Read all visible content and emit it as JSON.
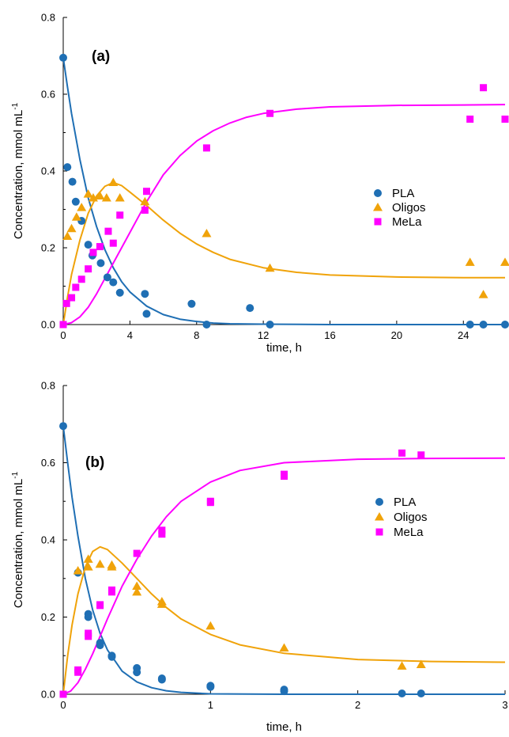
{
  "chart_data": [
    {
      "type": "scatter",
      "panel_label": "(a)",
      "xlabel": "time, h",
      "ylabel": "Concentration, mmol mL",
      "ylabel_superscript": "-1",
      "xlim": [
        0,
        26.5
      ],
      "ylim": [
        0,
        0.8
      ],
      "xticks": [
        "0",
        "4",
        "8",
        "12",
        "16",
        "20",
        "24"
      ],
      "yticks": [
        "0.0",
        "0.2",
        "0.4",
        "0.6",
        "0.8"
      ],
      "legend_position": "center-right",
      "series": [
        {
          "name": "PLA",
          "marker": "circle",
          "color": "#1f6fb4",
          "points": [
            [
              0,
              0.695
            ],
            [
              0.25,
              0.41
            ],
            [
              0.55,
              0.372
            ],
            [
              0.75,
              0.32
            ],
            [
              1.1,
              0.27
            ],
            [
              1.5,
              0.208
            ],
            [
              1.75,
              0.18
            ],
            [
              2.25,
              0.16
            ],
            [
              2.65,
              0.123
            ],
            [
              3.0,
              0.11
            ],
            [
              3.4,
              0.083
            ],
            [
              4.9,
              0.08
            ],
            [
              5.0,
              0.028
            ],
            [
              7.7,
              0.054
            ],
            [
              8.6,
              0.0
            ],
            [
              11.2,
              0.043
            ],
            [
              12.4,
              0.0
            ],
            [
              24.4,
              0.0
            ],
            [
              25.2,
              0.0
            ],
            [
              26.5,
              0.0
            ]
          ],
          "model": [
            [
              0,
              0.695
            ],
            [
              0.25,
              0.62
            ],
            [
              0.5,
              0.55
            ],
            [
              1,
              0.43
            ],
            [
              1.5,
              0.33
            ],
            [
              2,
              0.255
            ],
            [
              2.5,
              0.195
            ],
            [
              3,
              0.148
            ],
            [
              3.5,
              0.112
            ],
            [
              4,
              0.085
            ],
            [
              5,
              0.048
            ],
            [
              6,
              0.026
            ],
            [
              7,
              0.014
            ],
            [
              8,
              0.008
            ],
            [
              9,
              0.004
            ],
            [
              10,
              0.002
            ],
            [
              12,
              0.001
            ],
            [
              16,
              0.0
            ],
            [
              26.5,
              0.0
            ]
          ]
        },
        {
          "name": "Oligos",
          "marker": "triangle",
          "color": "#f0a30a",
          "points": [
            [
              0.25,
              0.23
            ],
            [
              0.5,
              0.25
            ],
            [
              0.8,
              0.28
            ],
            [
              1.1,
              0.305
            ],
            [
              1.5,
              0.34
            ],
            [
              1.8,
              0.33
            ],
            [
              2.2,
              0.335
            ],
            [
              2.6,
              0.33
            ],
            [
              3.0,
              0.37
            ],
            [
              3.4,
              0.33
            ],
            [
              4.9,
              0.32
            ],
            [
              8.6,
              0.237
            ],
            [
              12.4,
              0.147
            ],
            [
              24.4,
              0.162
            ],
            [
              25.2,
              0.078
            ],
            [
              26.5,
              0.162
            ]
          ],
          "model": [
            [
              0,
              0.0
            ],
            [
              0.25,
              0.07
            ],
            [
              0.5,
              0.13
            ],
            [
              1,
              0.22
            ],
            [
              1.5,
              0.29
            ],
            [
              2,
              0.335
            ],
            [
              2.5,
              0.36
            ],
            [
              3,
              0.37
            ],
            [
              3.5,
              0.362
            ],
            [
              4,
              0.345
            ],
            [
              5,
              0.31
            ],
            [
              6,
              0.272
            ],
            [
              7,
              0.238
            ],
            [
              8,
              0.21
            ],
            [
              9,
              0.188
            ],
            [
              10,
              0.17
            ],
            [
              12,
              0.148
            ],
            [
              14,
              0.136
            ],
            [
              16,
              0.129
            ],
            [
              20,
              0.124
            ],
            [
              24,
              0.122
            ],
            [
              26.5,
              0.122
            ]
          ]
        },
        {
          "name": "MeLa",
          "marker": "square",
          "color": "#ff00ff",
          "points": [
            [
              0,
              0.0
            ],
            [
              0.2,
              0.055
            ],
            [
              0.5,
              0.07
            ],
            [
              0.75,
              0.097
            ],
            [
              1.1,
              0.118
            ],
            [
              1.5,
              0.145
            ],
            [
              1.8,
              0.188
            ],
            [
              2.2,
              0.203
            ],
            [
              2.7,
              0.243
            ],
            [
              3.0,
              0.212
            ],
            [
              3.4,
              0.285
            ],
            [
              4.9,
              0.298
            ],
            [
              5.0,
              0.347
            ],
            [
              8.6,
              0.46
            ],
            [
              12.4,
              0.55
            ],
            [
              24.4,
              0.535
            ],
            [
              25.2,
              0.617
            ],
            [
              26.5,
              0.535
            ]
          ],
          "model": [
            [
              0,
              0.0
            ],
            [
              0.5,
              0.005
            ],
            [
              1,
              0.02
            ],
            [
              1.5,
              0.045
            ],
            [
              2,
              0.08
            ],
            [
              2.5,
              0.12
            ],
            [
              3,
              0.16
            ],
            [
              4,
              0.24
            ],
            [
              5,
              0.32
            ],
            [
              6,
              0.39
            ],
            [
              7,
              0.44
            ],
            [
              8,
              0.478
            ],
            [
              9,
              0.505
            ],
            [
              10,
              0.525
            ],
            [
              11,
              0.54
            ],
            [
              12,
              0.55
            ],
            [
              14,
              0.561
            ],
            [
              16,
              0.567
            ],
            [
              20,
              0.571
            ],
            [
              24,
              0.572
            ],
            [
              26.5,
              0.573
            ]
          ]
        }
      ]
    },
    {
      "type": "scatter",
      "panel_label": "(b)",
      "xlabel": "time, h",
      "ylabel": "Concentration, mmol mL",
      "ylabel_superscript": "-1",
      "xlim": [
        0,
        3
      ],
      "ylim": [
        0,
        0.8
      ],
      "xticks": [
        "0",
        "1",
        "2",
        "3"
      ],
      "yticks": [
        "0.0",
        "0.2",
        "0.4",
        "0.6",
        "0.8"
      ],
      "legend_position": "center-right",
      "series": [
        {
          "name": "PLA",
          "marker": "circle",
          "color": "#1f6fb4",
          "points": [
            [
              0,
              0.695
            ],
            [
              0.1,
              0.315
            ],
            [
              0.17,
              0.208
            ],
            [
              0.17,
              0.2
            ],
            [
              0.25,
              0.133
            ],
            [
              0.25,
              0.127
            ],
            [
              0.33,
              0.1
            ],
            [
              0.33,
              0.097
            ],
            [
              0.5,
              0.068
            ],
            [
              0.5,
              0.057
            ],
            [
              0.67,
              0.041
            ],
            [
              0.67,
              0.038
            ],
            [
              1.0,
              0.022
            ],
            [
              1.0,
              0.019
            ],
            [
              1.5,
              0.012
            ],
            [
              1.5,
              0.008
            ],
            [
              2.3,
              0.002
            ],
            [
              2.43,
              0.002
            ]
          ],
          "model": [
            [
              0,
              0.695
            ],
            [
              0.03,
              0.6
            ],
            [
              0.06,
              0.51
            ],
            [
              0.1,
              0.41
            ],
            [
              0.15,
              0.3
            ],
            [
              0.2,
              0.218
            ],
            [
              0.25,
              0.158
            ],
            [
              0.3,
              0.115
            ],
            [
              0.4,
              0.06
            ],
            [
              0.5,
              0.032
            ],
            [
              0.6,
              0.017
            ],
            [
              0.7,
              0.009
            ],
            [
              0.8,
              0.005
            ],
            [
              1.0,
              0.001
            ],
            [
              1.5,
              0.0
            ],
            [
              3.0,
              0.0
            ]
          ]
        },
        {
          "name": "Oligos",
          "marker": "triangle",
          "color": "#f0a30a",
          "points": [
            [
              0.1,
              0.32
            ],
            [
              0.17,
              0.35
            ],
            [
              0.17,
              0.33
            ],
            [
              0.25,
              0.337
            ],
            [
              0.33,
              0.33
            ],
            [
              0.33,
              0.335
            ],
            [
              0.5,
              0.28
            ],
            [
              0.5,
              0.265
            ],
            [
              0.67,
              0.24
            ],
            [
              0.67,
              0.233
            ],
            [
              1.0,
              0.177
            ],
            [
              1.5,
              0.12
            ],
            [
              2.3,
              0.073
            ],
            [
              2.43,
              0.077
            ]
          ],
          "model": [
            [
              0,
              0.0
            ],
            [
              0.03,
              0.1
            ],
            [
              0.06,
              0.18
            ],
            [
              0.1,
              0.26
            ],
            [
              0.15,
              0.33
            ],
            [
              0.2,
              0.37
            ],
            [
              0.25,
              0.382
            ],
            [
              0.3,
              0.375
            ],
            [
              0.4,
              0.34
            ],
            [
              0.5,
              0.3
            ],
            [
              0.6,
              0.26
            ],
            [
              0.7,
              0.225
            ],
            [
              0.8,
              0.195
            ],
            [
              1.0,
              0.155
            ],
            [
              1.2,
              0.128
            ],
            [
              1.5,
              0.106
            ],
            [
              2.0,
              0.09
            ],
            [
              2.5,
              0.085
            ],
            [
              3.0,
              0.083
            ]
          ]
        },
        {
          "name": "MeLa",
          "marker": "square",
          "color": "#ff00ff",
          "points": [
            [
              0,
              0.0
            ],
            [
              0.1,
              0.063
            ],
            [
              0.1,
              0.057
            ],
            [
              0.17,
              0.158
            ],
            [
              0.17,
              0.15
            ],
            [
              0.25,
              0.232
            ],
            [
              0.25,
              0.23
            ],
            [
              0.33,
              0.27
            ],
            [
              0.33,
              0.265
            ],
            [
              0.5,
              0.365
            ],
            [
              0.67,
              0.425
            ],
            [
              0.67,
              0.415
            ],
            [
              1.0,
              0.5
            ],
            [
              1.0,
              0.497
            ],
            [
              1.5,
              0.57
            ],
            [
              1.5,
              0.565
            ],
            [
              2.3,
              0.625
            ],
            [
              2.43,
              0.62
            ]
          ],
          "model": [
            [
              0,
              0.0
            ],
            [
              0.05,
              0.008
            ],
            [
              0.1,
              0.03
            ],
            [
              0.15,
              0.065
            ],
            [
              0.2,
              0.105
            ],
            [
              0.25,
              0.15
            ],
            [
              0.3,
              0.195
            ],
            [
              0.4,
              0.28
            ],
            [
              0.5,
              0.35
            ],
            [
              0.6,
              0.41
            ],
            [
              0.7,
              0.46
            ],
            [
              0.8,
              0.5
            ],
            [
              1.0,
              0.55
            ],
            [
              1.2,
              0.58
            ],
            [
              1.5,
              0.6
            ],
            [
              2.0,
              0.609
            ],
            [
              2.5,
              0.611
            ],
            [
              3.0,
              0.612
            ]
          ]
        }
      ]
    }
  ]
}
